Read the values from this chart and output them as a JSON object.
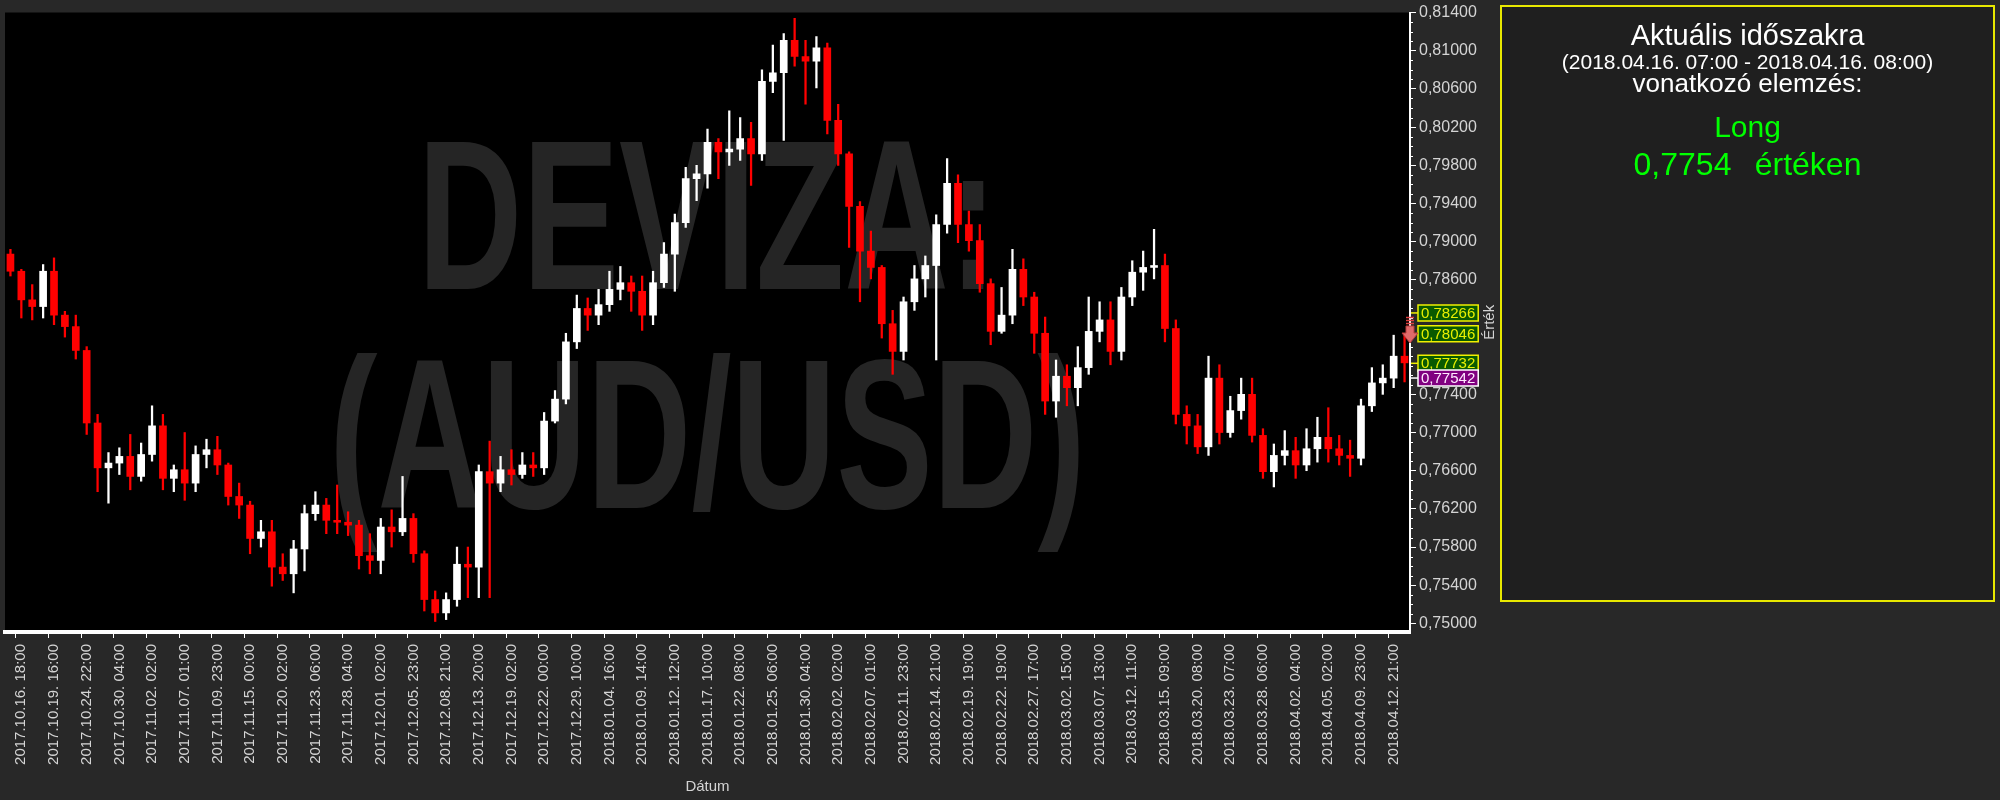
{
  "chart_data": [
    {
      "type": "candlestick",
      "title": "DEVIZA: (AUD/USD)",
      "xlabel": "Dátum",
      "ylabel": "Érték",
      "categories": [
        null,
        "2017.10.16. 18:00",
        null,
        null,
        "2017.10.19. 16:00",
        null,
        null,
        "2017.10.24. 22:00",
        null,
        null,
        "2017.10.30. 04:00",
        null,
        null,
        "2017.11.02. 02:00",
        null,
        null,
        "2017.11.07. 01:00",
        null,
        null,
        "2017.11.09. 23:00",
        null,
        null,
        "2017.11.15. 00:00",
        null,
        null,
        "2017.11.20. 02:00",
        null,
        null,
        "2017.11.23. 06:00",
        null,
        null,
        "2017.11.28. 04:00",
        null,
        null,
        "2017.12.01. 02:00",
        null,
        null,
        "2017.12.05. 23:00",
        null,
        null,
        "2017.12.08. 21:00",
        null,
        null,
        "2017.12.13. 20:00",
        null,
        null,
        "2017.12.19. 02:00",
        null,
        null,
        "2017.12.22. 00:00",
        null,
        null,
        "2017.12.29. 10:00",
        null,
        null,
        "2018.01.04. 16:00",
        null,
        null,
        "2018.01.09. 14:00",
        null,
        null,
        "2018.01.12. 12:00",
        null,
        null,
        "2018.01.17. 10:00",
        null,
        null,
        "2018.01.22. 08:00",
        null,
        null,
        "2018.01.25. 06:00",
        null,
        null,
        "2018.01.30. 04:00",
        null,
        null,
        "2018.02.02. 02:00",
        null,
        null,
        "2018.02.07. 01:00",
        null,
        null,
        "2018.02.11. 23:00",
        null,
        null,
        "2018.02.14. 21:00",
        null,
        null,
        "2018.02.19. 19:00",
        null,
        null,
        "2018.02.22. 19:00",
        null,
        null,
        "2018.02.27. 17:00",
        null,
        null,
        "2018.03.02. 15:00",
        null,
        null,
        "2018.03.07. 13:00",
        null,
        null,
        "2018.03.12. 11:00",
        null,
        null,
        "2018.03.15. 09:00",
        null,
        null,
        "2018.03.20. 08:00",
        null,
        null,
        "2018.03.23. 07:00",
        null,
        null,
        "2018.03.28. 06:00",
        null,
        null,
        "2018.04.02. 04:00",
        null,
        null,
        "2018.04.05. 02:00",
        null,
        null,
        "2018.04.09. 23:00",
        null,
        null,
        "2018.04.12. 21:00",
        null
      ],
      "ohlc": [
        [
          0.7887,
          0.7892,
          0.7864,
          0.7869
        ],
        [
          0.7869,
          0.7871,
          0.782,
          0.7839
        ],
        [
          0.7839,
          0.7855,
          0.7818,
          0.7832
        ],
        [
          0.7832,
          0.7876,
          0.782,
          0.7869
        ],
        [
          0.7869,
          0.7883,
          0.7813,
          0.7823
        ],
        [
          0.7823,
          0.7827,
          0.78,
          0.7811
        ],
        [
          0.7811,
          0.7823,
          0.7777,
          0.7786
        ],
        [
          0.7786,
          0.779,
          0.7698,
          0.771
        ],
        [
          0.771,
          0.7719,
          0.7638,
          0.7663
        ],
        [
          0.7663,
          0.7679,
          0.7626,
          0.7668
        ],
        [
          0.7668,
          0.7684,
          0.7656,
          0.7675
        ],
        [
          0.7675,
          0.7698,
          0.764,
          0.7654
        ],
        [
          0.7654,
          0.7689,
          0.7649,
          0.7677
        ],
        [
          0.7677,
          0.7728,
          0.767,
          0.7707
        ],
        [
          0.7707,
          0.7719,
          0.764,
          0.7652
        ],
        [
          0.7652,
          0.7666,
          0.7638,
          0.7661
        ],
        [
          0.7661,
          0.77,
          0.7629,
          0.7647
        ],
        [
          0.7647,
          0.7686,
          0.7638,
          0.7677
        ],
        [
          0.7677,
          0.7693,
          0.7663,
          0.7682
        ],
        [
          0.7682,
          0.7696,
          0.7656,
          0.7666
        ],
        [
          0.7666,
          0.7668,
          0.7624,
          0.7633
        ],
        [
          0.7633,
          0.7647,
          0.761,
          0.7624
        ],
        [
          0.7624,
          0.7628,
          0.7573,
          0.7589
        ],
        [
          0.7589,
          0.7608,
          0.758,
          0.7596
        ],
        [
          0.7596,
          0.7608,
          0.7539,
          0.7559
        ],
        [
          0.7559,
          0.7573,
          0.7545,
          0.7552
        ],
        [
          0.7552,
          0.7587,
          0.7532,
          0.7578
        ],
        [
          0.7578,
          0.7624,
          0.7555,
          0.7615
        ],
        [
          0.7615,
          0.7638,
          0.7608,
          0.7624
        ],
        [
          0.7624,
          0.7631,
          0.7594,
          0.7608
        ],
        [
          0.7608,
          0.7645,
          0.7594,
          0.7606
        ],
        [
          0.7606,
          0.7617,
          0.7592,
          0.7603
        ],
        [
          0.7603,
          0.7608,
          0.7557,
          0.7571
        ],
        [
          0.7571,
          0.7594,
          0.7552,
          0.7566
        ],
        [
          0.7566,
          0.761,
          0.7552,
          0.7601
        ],
        [
          0.7601,
          0.7619,
          0.758,
          0.7596
        ],
        [
          0.7596,
          0.7654,
          0.7592,
          0.761
        ],
        [
          0.761,
          0.7615,
          0.7564,
          0.7573
        ],
        [
          0.7573,
          0.7576,
          0.7513,
          0.7525
        ],
        [
          0.7525,
          0.7534,
          0.7502,
          0.7511
        ],
        [
          0.7511,
          0.7532,
          0.7504,
          0.7525
        ],
        [
          0.7525,
          0.758,
          0.7518,
          0.7562
        ],
        [
          0.7562,
          0.758,
          0.7527,
          0.7559
        ],
        [
          0.7559,
          0.7666,
          0.7527,
          0.7659
        ],
        [
          0.7659,
          0.7691,
          0.7527,
          0.7647
        ],
        [
          0.7647,
          0.7675,
          0.7638,
          0.7661
        ],
        [
          0.7661,
          0.7682,
          0.7645,
          0.7656
        ],
        [
          0.7656,
          0.7679,
          0.7652,
          0.7666
        ],
        [
          0.7666,
          0.7679,
          0.7654,
          0.7663
        ],
        [
          0.7663,
          0.7721,
          0.7656,
          0.7712
        ],
        [
          0.7712,
          0.7744,
          0.771,
          0.7735
        ],
        [
          0.7735,
          0.7804,
          0.773,
          0.7795
        ],
        [
          0.7795,
          0.7844,
          0.7788,
          0.783
        ],
        [
          0.783,
          0.7841,
          0.7807,
          0.7823
        ],
        [
          0.7823,
          0.785,
          0.7813,
          0.7834
        ],
        [
          0.7834,
          0.7869,
          0.7827,
          0.785
        ],
        [
          0.785,
          0.7874,
          0.7839,
          0.7857
        ],
        [
          0.7857,
          0.7864,
          0.7827,
          0.7848
        ],
        [
          0.7848,
          0.7864,
          0.7807,
          0.7823
        ],
        [
          0.7823,
          0.7869,
          0.7813,
          0.7857
        ],
        [
          0.7857,
          0.7899,
          0.7852,
          0.7887
        ],
        [
          0.7887,
          0.7929,
          0.7848,
          0.792
        ],
        [
          0.792,
          0.7978,
          0.7915,
          0.7966
        ],
        [
          0.7966,
          0.798,
          0.7943,
          0.7971
        ],
        [
          0.7971,
          0.8018,
          0.7956,
          0.8004
        ],
        [
          0.8004,
          0.8008,
          0.7966,
          0.7994
        ],
        [
          0.7994,
          0.8037,
          0.798,
          0.7997
        ],
        [
          0.7997,
          0.803,
          0.7985,
          0.8008
        ],
        [
          0.8008,
          0.8025,
          0.7959,
          0.7992
        ],
        [
          0.7992,
          0.808,
          0.7985,
          0.8068
        ],
        [
          0.8068,
          0.8106,
          0.8056,
          0.8077
        ],
        [
          0.8077,
          0.8118,
          0.8006,
          0.8111
        ],
        [
          0.8111,
          0.8134,
          0.8084,
          0.8094
        ],
        [
          0.8094,
          0.8111,
          0.8044,
          0.8089
        ],
        [
          0.8089,
          0.8115,
          0.8061,
          0.8103
        ],
        [
          0.8103,
          0.8108,
          0.8013,
          0.8027
        ],
        [
          0.8027,
          0.8044,
          0.798,
          0.7992
        ],
        [
          0.7992,
          0.7994,
          0.7894,
          0.7937
        ],
        [
          0.7937,
          0.7942,
          0.7837,
          0.789
        ],
        [
          0.789,
          0.7911,
          0.7861,
          0.7873
        ],
        [
          0.7873,
          0.7875,
          0.7799,
          0.7814
        ],
        [
          0.7814,
          0.7828,
          0.7761,
          0.7785
        ],
        [
          0.7785,
          0.7842,
          0.7776,
          0.7837
        ],
        [
          0.7837,
          0.7875,
          0.7828,
          0.7861
        ],
        [
          0.7861,
          0.7885,
          0.7842,
          0.7875
        ],
        [
          0.7875,
          0.7928,
          0.7776,
          0.7918
        ],
        [
          0.7918,
          0.7987,
          0.7909,
          0.7961
        ],
        [
          0.7961,
          0.797,
          0.7899,
          0.7918
        ],
        [
          0.7918,
          0.7932,
          0.789,
          0.7901
        ],
        [
          0.7901,
          0.7918,
          0.7847,
          0.7856
        ],
        [
          0.7856,
          0.7861,
          0.7792,
          0.7806
        ],
        [
          0.7806,
          0.7852,
          0.7804,
          0.7823
        ],
        [
          0.7823,
          0.7892,
          0.7814,
          0.7871
        ],
        [
          0.7871,
          0.7882,
          0.7833,
          0.7842
        ],
        [
          0.7842,
          0.7847,
          0.7783,
          0.7804
        ],
        [
          0.7804,
          0.7821,
          0.7719,
          0.7733
        ],
        [
          0.7733,
          0.7776,
          0.7716,
          0.7759
        ],
        [
          0.7759,
          0.7771,
          0.7728,
          0.7747
        ],
        [
          0.7747,
          0.779,
          0.7728,
          0.7768
        ],
        [
          0.7768,
          0.7842,
          0.7761,
          0.7806
        ],
        [
          0.7806,
          0.7837,
          0.7795,
          0.7818
        ],
        [
          0.7818,
          0.7837,
          0.7771,
          0.7785
        ],
        [
          0.7785,
          0.7852,
          0.7776,
          0.7842
        ],
        [
          0.7842,
          0.788,
          0.7833,
          0.7868
        ],
        [
          0.7868,
          0.789,
          0.7849,
          0.7873
        ],
        [
          0.7873,
          0.7913,
          0.7861,
          0.7875
        ],
        [
          0.7875,
          0.7887,
          0.7795,
          0.7809
        ],
        [
          0.7809,
          0.7818,
          0.7709,
          0.7719
        ],
        [
          0.7719,
          0.7728,
          0.7688,
          0.7707
        ],
        [
          0.7707,
          0.7719,
          0.7678,
          0.7685
        ],
        [
          0.7685,
          0.778,
          0.7676,
          0.7757
        ],
        [
          0.7757,
          0.7771,
          0.7688,
          0.77
        ],
        [
          0.77,
          0.7738,
          0.7695,
          0.7723
        ],
        [
          0.7723,
          0.7757,
          0.7714,
          0.774
        ],
        [
          0.774,
          0.7757,
          0.769,
          0.7697
        ],
        [
          0.7697,
          0.7704,
          0.7652,
          0.7659
        ],
        [
          0.7659,
          0.7688,
          0.7643,
          0.7676
        ],
        [
          0.7676,
          0.7702,
          0.7666,
          0.7681
        ],
        [
          0.7681,
          0.7695,
          0.7652,
          0.7666
        ],
        [
          0.7666,
          0.7704,
          0.766,
          0.7683
        ],
        [
          0.7683,
          0.7716,
          0.7669,
          0.7695
        ],
        [
          0.7695,
          0.7726,
          0.7669,
          0.7683
        ],
        [
          0.7683,
          0.7697,
          0.7666,
          0.7676
        ],
        [
          0.7676,
          0.7692,
          0.7654,
          0.7673
        ],
        [
          0.7673,
          0.7735,
          0.7666,
          0.7728
        ],
        [
          0.7728,
          0.7768,
          0.7722,
          0.7752
        ],
        [
          0.7752,
          0.7771,
          0.774,
          0.7757
        ],
        [
          0.7757,
          0.7802,
          0.7747,
          0.778
        ],
        [
          0.778,
          0.7804,
          0.7753,
          0.7773
        ]
      ],
      "colors": [
        "#ff0000",
        "#ff0000",
        "#ff0000",
        "#ffffff",
        "#ff0000",
        "#ff0000",
        "#ff0000",
        "#ff0000",
        "#ff0000",
        "#ffffff",
        "#ffffff",
        "#ff0000",
        "#ffffff",
        "#ffffff",
        "#ff0000",
        "#ffffff",
        "#ff0000",
        "#ffffff",
        "#ffffff",
        "#ff0000",
        "#ff0000",
        "#ff0000",
        "#ff0000",
        "#ffffff",
        "#ff0000",
        "#ff0000",
        "#ffffff",
        "#ffffff",
        "#ffffff",
        "#ff0000",
        "#ff0000",
        "#ff0000",
        "#ff0000",
        "#ff0000",
        "#ffffff",
        "#ff0000",
        "#ffffff",
        "#ff0000",
        "#ff0000",
        "#ff0000",
        "#ffffff",
        "#ffffff",
        "#ff0000",
        "#ffffff",
        "#ff0000",
        "#ffffff",
        "#ff0000",
        "#ffffff",
        "#ff0000",
        "#ffffff",
        "#ffffff",
        "#ffffff",
        "#ffffff",
        "#ff0000",
        "#ffffff",
        "#ffffff",
        "#ffffff",
        "#ff0000",
        "#ff0000",
        "#ffffff",
        "#ffffff",
        "#ffffff",
        "#ffffff",
        "#ffffff",
        "#ffffff",
        "#ff0000",
        "#ffffff",
        "#ffffff",
        "#ff0000",
        "#ffffff",
        "#ffffff",
        "#ffffff",
        "#ff0000",
        "#ff0000",
        "#ffffff",
        "#ff0000",
        "#ff0000",
        "#ff0000",
        "#ff0000",
        "#ff0000",
        "#ff0000",
        "#ff0000",
        "#ffffff",
        "#ffffff",
        "#ffffff",
        "#ffffff",
        "#ffffff",
        "#ff0000",
        "#ff0000",
        "#ff0000",
        "#ff0000",
        "#ffffff",
        "#ffffff",
        "#ff0000",
        "#ff0000",
        "#ff0000",
        "#ffffff",
        "#ff0000",
        "#ffffff",
        "#ffffff",
        "#ffffff",
        "#ff0000",
        "#ffffff",
        "#ffffff",
        "#ffffff",
        "#ffffff",
        "#ff0000",
        "#ff0000",
        "#ff0000",
        "#ff0000",
        "#ffffff",
        "#ff0000",
        "#ffffff",
        "#ffffff",
        "#ff0000",
        "#ff0000",
        "#ffffff",
        "#ffffff",
        "#ff0000",
        "#ffffff",
        "#ffffff",
        "#ff0000",
        "#ff0000",
        "#ff0000",
        "#ffffff",
        "#ffffff",
        "#ffffff",
        "#ffffff",
        "#ff0000"
      ],
      "ylim": [
        0.7491,
        0.814
      ],
      "yticks": [
        {
          "value": 0.75,
          "label": "0,75000"
        },
        {
          "value": 0.751,
          "label": null
        },
        {
          "value": 0.752,
          "label": null
        },
        {
          "value": 0.753,
          "label": null
        },
        {
          "value": 0.754,
          "label": "0,75400"
        },
        {
          "value": 0.755,
          "label": null
        },
        {
          "value": 0.756,
          "label": null
        },
        {
          "value": 0.757,
          "label": null
        },
        {
          "value": 0.758,
          "label": "0,75800"
        },
        {
          "value": 0.759,
          "label": null
        },
        {
          "value": 0.76,
          "label": null
        },
        {
          "value": 0.761,
          "label": null
        },
        {
          "value": 0.762,
          "label": "0,76200"
        },
        {
          "value": 0.763,
          "label": null
        },
        {
          "value": 0.764,
          "label": null
        },
        {
          "value": 0.765,
          "label": null
        },
        {
          "value": 0.766,
          "label": "0,76600"
        },
        {
          "value": 0.767,
          "label": null
        },
        {
          "value": 0.768,
          "label": null
        },
        {
          "value": 0.769,
          "label": null
        },
        {
          "value": 0.77,
          "label": "0,77000"
        },
        {
          "value": 0.771,
          "label": null
        },
        {
          "value": 0.772,
          "label": null
        },
        {
          "value": 0.773,
          "label": null
        },
        {
          "value": 0.774,
          "label": "0,77400"
        },
        {
          "value": 0.775,
          "label": null
        },
        {
          "value": 0.776,
          "label": null
        },
        {
          "value": 0.777,
          "label": null
        },
        {
          "value": 0.778,
          "label": null
        },
        {
          "value": 0.779,
          "label": null
        },
        {
          "value": 0.78,
          "label": null
        },
        {
          "value": 0.781,
          "label": null
        },
        {
          "value": 0.782,
          "label": null
        },
        {
          "value": 0.783,
          "label": null
        },
        {
          "value": 0.784,
          "label": null
        },
        {
          "value": 0.785,
          "label": null
        },
        {
          "value": 0.786,
          "label": "0,78600"
        },
        {
          "value": 0.787,
          "label": null
        },
        {
          "value": 0.788,
          "label": null
        },
        {
          "value": 0.789,
          "label": null
        },
        {
          "value": 0.79,
          "label": "0,79000"
        },
        {
          "value": 0.791,
          "label": null
        },
        {
          "value": 0.792,
          "label": null
        },
        {
          "value": 0.793,
          "label": null
        },
        {
          "value": 0.794,
          "label": "0,79400"
        },
        {
          "value": 0.795,
          "label": null
        },
        {
          "value": 0.796,
          "label": null
        },
        {
          "value": 0.797,
          "label": null
        },
        {
          "value": 0.798,
          "label": "0,79800"
        },
        {
          "value": 0.799,
          "label": null
        },
        {
          "value": 0.8,
          "label": null
        },
        {
          "value": 0.801,
          "label": null
        },
        {
          "value": 0.802,
          "label": "0,80200"
        },
        {
          "value": 0.803,
          "label": null
        },
        {
          "value": 0.804,
          "label": null
        },
        {
          "value": 0.805,
          "label": null
        },
        {
          "value": 0.806,
          "label": "0,80600"
        },
        {
          "value": 0.807,
          "label": null
        },
        {
          "value": 0.808,
          "label": null
        },
        {
          "value": 0.809,
          "label": null
        },
        {
          "value": 0.81,
          "label": "0,81000"
        },
        {
          "value": 0.811,
          "label": null
        },
        {
          "value": 0.812,
          "label": null
        },
        {
          "value": 0.813,
          "label": null
        },
        {
          "value": 0.814,
          "label": "0,81400"
        }
      ],
      "annotations": [
        "0,78266",
        "0,78046",
        "0,77732",
        "0,77542"
      ]
    },
    {
      "type": "other",
      "title": "Aktuális időszakra",
      "subtitle": "(2018.04.16. 07:00 - 2018.04.16. 08:00)",
      "annotations": [
        "vonatkozó elemzés:",
        "Long",
        "0,7754 értéken"
      ]
    }
  ]
}
